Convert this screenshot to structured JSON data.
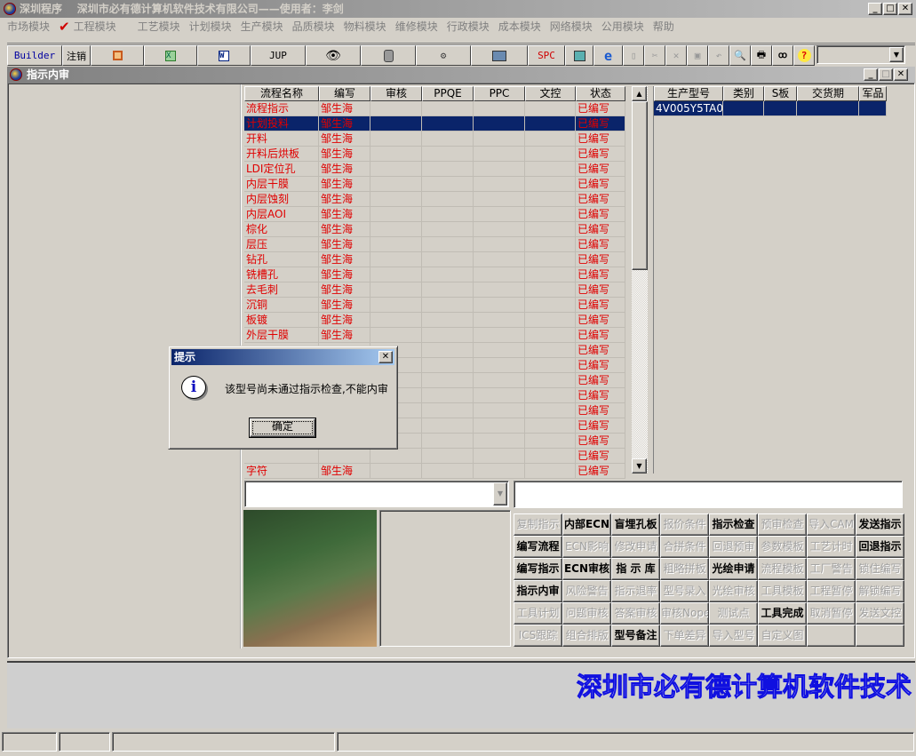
{
  "title": {
    "app": "深圳程序",
    "company": "深圳市必有德计算机软件技术有限公司——使用者：李剑"
  },
  "menu": [
    "市场模块",
    "工程模块",
    "工艺模块",
    "计划模块",
    "生产模块",
    "品质模块",
    "物料模块",
    "维修模块",
    "行政模块",
    "成本模块",
    "网络模块",
    "公用模块",
    "帮助"
  ],
  "toolbar": {
    "builder": "Builder",
    "logout": "注销",
    "jup": "JUP",
    "spc": "SPC",
    "combo_value": ""
  },
  "child_window": {
    "title": "指示内审"
  },
  "flow_table": {
    "columns": [
      "流程名称",
      "编写",
      "审核",
      "PPQE",
      "PPC",
      "文控",
      "状态"
    ],
    "rows": [
      [
        "流程指示",
        "邹生海",
        "",
        "",
        "",
        "",
        "已编写"
      ],
      [
        "计划投料",
        "邹生海",
        "",
        "",
        "",
        "",
        "已编写"
      ],
      [
        "开料",
        "邹生海",
        "",
        "",
        "",
        "",
        "已编写"
      ],
      [
        "开料后烘板",
        "邹生海",
        "",
        "",
        "",
        "",
        "已编写"
      ],
      [
        "LDI定位孔",
        "邹生海",
        "",
        "",
        "",
        "",
        "已编写"
      ],
      [
        "内层干膜",
        "邹生海",
        "",
        "",
        "",
        "",
        "已编写"
      ],
      [
        "内层蚀刻",
        "邹生海",
        "",
        "",
        "",
        "",
        "已编写"
      ],
      [
        "内层AOI",
        "邹生海",
        "",
        "",
        "",
        "",
        "已编写"
      ],
      [
        "棕化",
        "邹生海",
        "",
        "",
        "",
        "",
        "已编写"
      ],
      [
        "层压",
        "邹生海",
        "",
        "",
        "",
        "",
        "已编写"
      ],
      [
        "钻孔",
        "邹生海",
        "",
        "",
        "",
        "",
        "已编写"
      ],
      [
        "铣槽孔",
        "邹生海",
        "",
        "",
        "",
        "",
        "已编写"
      ],
      [
        "去毛刺",
        "邹生海",
        "",
        "",
        "",
        "",
        "已编写"
      ],
      [
        "沉铜",
        "邹生海",
        "",
        "",
        "",
        "",
        "已编写"
      ],
      [
        "板镀",
        "邹生海",
        "",
        "",
        "",
        "",
        "已编写"
      ],
      [
        "外层干膜",
        "邹生海",
        "",
        "",
        "",
        "",
        "已编写"
      ],
      [
        "",
        "",
        "",
        "",
        "",
        "",
        "已编写"
      ],
      [
        "",
        "",
        "",
        "",
        "",
        "",
        "已编写"
      ],
      [
        "",
        "",
        "",
        "",
        "",
        "",
        "已编写"
      ],
      [
        "",
        "",
        "",
        "",
        "",
        "",
        "已编写"
      ],
      [
        "",
        "",
        "",
        "",
        "",
        "",
        "已编写"
      ],
      [
        "",
        "",
        "",
        "",
        "",
        "",
        "已编写"
      ],
      [
        "",
        "",
        "",
        "",
        "",
        "",
        "已编写"
      ],
      [
        "",
        "",
        "",
        "",
        "",
        "",
        "已编写"
      ],
      [
        "字符",
        "邹生海",
        "",
        "",
        "",
        "",
        "已编写"
      ]
    ],
    "selected_index": 1
  },
  "model_table": {
    "columns": [
      "生产型号",
      "类别",
      "S板",
      "交货期",
      "军品"
    ],
    "rows": [
      [
        "4V005Y5TA0",
        "",
        "",
        "",
        ""
      ]
    ]
  },
  "buttons": [
    {
      "label": "复制指示",
      "enabled": false
    },
    {
      "label": "内部ECN",
      "enabled": true
    },
    {
      "label": "盲埋孔板",
      "enabled": true
    },
    {
      "label": "报价条件",
      "enabled": false
    },
    {
      "label": "指示检查",
      "enabled": true
    },
    {
      "label": "预审检查",
      "enabled": false
    },
    {
      "label": "导入CAM",
      "enabled": false
    },
    {
      "label": "发送指示",
      "enabled": true
    },
    {
      "label": "编写流程",
      "enabled": true
    },
    {
      "label": "ECN影响",
      "enabled": false
    },
    {
      "label": "修改申请",
      "enabled": false
    },
    {
      "label": "合拼条件",
      "enabled": false
    },
    {
      "label": "回退预审",
      "enabled": false
    },
    {
      "label": "参数模板",
      "enabled": false
    },
    {
      "label": "工艺计时",
      "enabled": false
    },
    {
      "label": "回退指示",
      "enabled": true
    },
    {
      "label": "编写指示",
      "enabled": true
    },
    {
      "label": "ECN审核",
      "enabled": true
    },
    {
      "label": "指 示 库",
      "enabled": true
    },
    {
      "label": "粗略拼板",
      "enabled": false
    },
    {
      "label": "光绘申请",
      "enabled": true
    },
    {
      "label": "流程模板",
      "enabled": false
    },
    {
      "label": "工厂警告",
      "enabled": false
    },
    {
      "label": "锁住编写",
      "enabled": false
    },
    {
      "label": "指示内审",
      "enabled": true
    },
    {
      "label": "风险警告",
      "enabled": false
    },
    {
      "label": "指示退率",
      "enabled": false
    },
    {
      "label": "型号录入",
      "enabled": false
    },
    {
      "label": "光绘审核",
      "enabled": false
    },
    {
      "label": "工具模板",
      "enabled": false
    },
    {
      "label": "工程暂停",
      "enabled": false
    },
    {
      "label": "解锁编写",
      "enabled": false
    },
    {
      "label": "工具计划",
      "enabled": false
    },
    {
      "label": "问题审核",
      "enabled": false
    },
    {
      "label": "答案审核",
      "enabled": false
    },
    {
      "label": "审核Nope",
      "enabled": false
    },
    {
      "label": "测试点",
      "enabled": false
    },
    {
      "label": "工具完成",
      "enabled": true
    },
    {
      "label": "取消暂停",
      "enabled": false
    },
    {
      "label": "发送文控",
      "enabled": false
    },
    {
      "label": "ICS跟踪",
      "enabled": false
    },
    {
      "label": "组合排版",
      "enabled": false
    },
    {
      "label": "型号备注",
      "enabled": true
    },
    {
      "label": "下单差异",
      "enabled": false
    },
    {
      "label": "导入型号",
      "enabled": false
    },
    {
      "label": "自定义图",
      "enabled": false
    },
    {
      "label": "",
      "enabled": false
    },
    {
      "label": "",
      "enabled": false
    }
  ],
  "banner": "深圳市必有德计算机软件技术",
  "dialog": {
    "title": "提示",
    "message": "该型号尚未通过指示检查,不能内审",
    "ok": "确定",
    "icon": "info-icon"
  },
  "colors": {
    "status_text": "#e00000",
    "selection": "#0a246a",
    "dialog_title": "#0a246a",
    "banner": "#1010e0"
  }
}
